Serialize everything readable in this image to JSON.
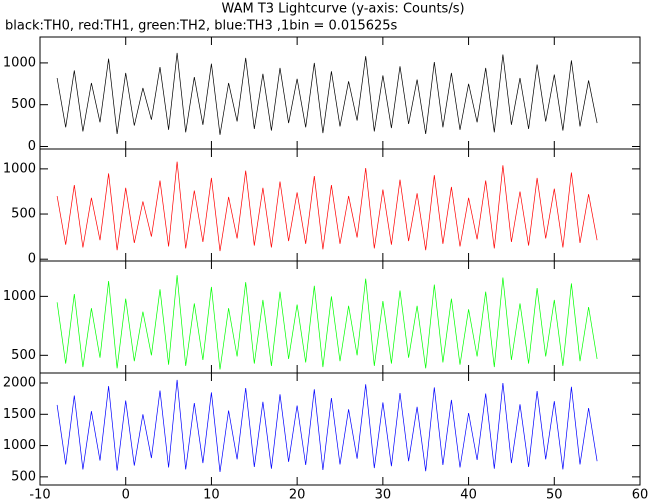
{
  "chart_data": {
    "type": "line",
    "title": "WAM T3 Lightcurve (y-axis: Counts/s)",
    "subtitle": "black:TH0, red:TH1, green:TH2, blue:TH3 ,1bin = 0.015625s",
    "xlim": [
      -10,
      60
    ],
    "xticks": [
      -10,
      0,
      10,
      20,
      30,
      40,
      50,
      60
    ],
    "x": [
      -8,
      -7,
      -6,
      -5,
      -4,
      -3,
      -2,
      -1,
      0,
      1,
      2,
      3,
      4,
      5,
      6,
      7,
      8,
      9,
      10,
      11,
      12,
      13,
      14,
      15,
      16,
      17,
      18,
      19,
      20,
      21,
      22,
      23,
      24,
      25,
      26,
      27,
      28,
      29,
      30,
      31,
      32,
      33,
      34,
      35,
      36,
      37,
      38,
      39,
      40,
      41,
      42,
      43,
      44,
      45,
      46,
      47,
      48,
      49,
      50,
      51,
      52,
      53,
      54,
      55
    ],
    "panels": [
      {
        "color": "#000000",
        "ylim": [
          -30,
          1310
        ],
        "yticks": [
          0,
          500,
          1000
        ],
        "values": [
          820,
          230,
          910,
          180,
          760,
          290,
          1050,
          150,
          880,
          250,
          700,
          320,
          950,
          200,
          1120,
          170,
          830,
          260,
          990,
          140,
          760,
          300,
          1060,
          210,
          870,
          190,
          940,
          280,
          810,
          230,
          1000,
          160,
          900,
          240,
          780,
          310,
          1080,
          180,
          850,
          220,
          960,
          270,
          800,
          150,
          1010,
          230,
          880,
          200,
          750,
          290,
          940,
          170,
          1100,
          260,
          820,
          210,
          980,
          300,
          860,
          190,
          1030,
          240,
          790,
          280
        ]
      },
      {
        "color": "#ff0000",
        "ylim": [
          -20,
          1220
        ],
        "yticks": [
          0,
          500,
          1000
        ],
        "values": [
          700,
          160,
          820,
          130,
          680,
          210,
          950,
          100,
          790,
          180,
          640,
          250,
          870,
          140,
          1080,
          120,
          760,
          190,
          900,
          90,
          690,
          230,
          980,
          150,
          790,
          130,
          860,
          200,
          740,
          170,
          920,
          110,
          820,
          170,
          700,
          240,
          1010,
          120,
          770,
          160,
          880,
          200,
          730,
          100,
          930,
          170,
          800,
          140,
          680,
          220,
          870,
          120,
          1040,
          190,
          750,
          150,
          900,
          230,
          780,
          130,
          960,
          180,
          720,
          210
        ]
      },
      {
        "color": "#00ff00",
        "ylim": [
          350,
          1300
        ],
        "yticks": [
          500,
          1000
        ],
        "values": [
          950,
          430,
          1020,
          400,
          900,
          480,
          1130,
          390,
          980,
          450,
          870,
          500,
          1060,
          420,
          1180,
          410,
          940,
          460,
          1080,
          380,
          900,
          490,
          1120,
          430,
          970,
          410,
          1040,
          470,
          930,
          440,
          1090,
          400,
          1000,
          450,
          920,
          500,
          1150,
          410,
          960,
          430,
          1050,
          480,
          920,
          390,
          1100,
          440,
          980,
          420,
          890,
          490,
          1040,
          400,
          1160,
          460,
          940,
          430,
          1070,
          490,
          970,
          410,
          1110,
          450,
          910,
          470
        ]
      },
      {
        "color": "#0000ff",
        "ylim": [
          370,
          2160
        ],
        "yticks": [
          500,
          1000,
          1500,
          2000
        ],
        "values": [
          1650,
          700,
          1800,
          620,
          1550,
          760,
          1950,
          600,
          1720,
          680,
          1500,
          800,
          1880,
          650,
          2050,
          620,
          1680,
          720,
          1850,
          580,
          1560,
          780,
          1920,
          660,
          1700,
          630,
          1820,
          740,
          1640,
          690,
          1900,
          610,
          1760,
          700,
          1580,
          790,
          1980,
          640,
          1690,
          670,
          1840,
          750,
          1620,
          590,
          1930,
          690,
          1730,
          650,
          1520,
          770,
          1830,
          630,
          2000,
          720,
          1660,
          660,
          1870,
          780,
          1710,
          620,
          1940,
          700,
          1600,
          750
        ]
      }
    ]
  }
}
